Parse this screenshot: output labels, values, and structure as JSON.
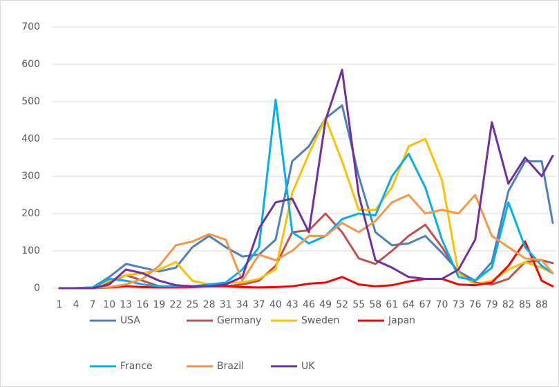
{
  "chart_data": {
    "type": "line",
    "x": [
      1,
      4,
      7,
      10,
      13,
      16,
      19,
      22,
      25,
      28,
      31,
      34,
      37,
      40,
      43,
      46,
      49,
      52,
      55,
      58,
      61,
      64,
      67,
      70,
      73,
      76,
      79,
      82,
      85,
      88,
      90
    ],
    "xlim": [
      1,
      90
    ],
    "xticks": [
      1,
      4,
      7,
      10,
      13,
      16,
      19,
      22,
      25,
      28,
      31,
      34,
      37,
      40,
      43,
      46,
      49,
      52,
      55,
      58,
      61,
      64,
      67,
      70,
      73,
      76,
      79,
      82,
      85,
      88
    ],
    "ylim": [
      0,
      700
    ],
    "yticks": [
      0,
      100,
      200,
      300,
      400,
      500,
      600,
      700
    ],
    "grid": true,
    "legend": "bottom",
    "series": [
      {
        "name": "USA",
        "color": "#4f7fbd",
        "values": [
          0,
          0,
          2,
          30,
          65,
          55,
          45,
          55,
          110,
          140,
          110,
          85,
          90,
          130,
          340,
          380,
          455,
          490,
          300,
          150,
          115,
          120,
          140,
          95,
          45,
          20,
          70,
          260,
          340,
          340,
          175
        ]
      },
      {
        "name": "Germany",
        "color": "#c0504d",
        "values": [
          0,
          0,
          0,
          15,
          35,
          20,
          5,
          3,
          5,
          5,
          5,
          10,
          20,
          60,
          150,
          155,
          200,
          150,
          80,
          65,
          100,
          140,
          170,
          110,
          40,
          15,
          10,
          25,
          70,
          75,
          67
        ]
      },
      {
        "name": "Sweden",
        "color": "#ffc000",
        "values": [
          0,
          0,
          0,
          20,
          35,
          40,
          50,
          70,
          20,
          10,
          15,
          15,
          25,
          50,
          255,
          360,
          455,
          340,
          210,
          210,
          270,
          380,
          400,
          290,
          40,
          10,
          20,
          50,
          70,
          55,
          40
        ]
      },
      {
        "name": "Japan",
        "color": "#ff0000",
        "values": [
          0,
          0,
          0,
          2,
          5,
          3,
          2,
          2,
          3,
          5,
          5,
          3,
          2,
          3,
          5,
          12,
          15,
          30,
          10,
          5,
          8,
          18,
          25,
          25,
          10,
          8,
          15,
          60,
          125,
          20,
          5
        ]
      },
      {
        "name": "France",
        "color": "#00b0f0",
        "values": [
          0,
          0,
          2,
          25,
          20,
          10,
          5,
          5,
          5,
          10,
          15,
          50,
          110,
          505,
          150,
          120,
          140,
          185,
          200,
          195,
          300,
          360,
          270,
          130,
          30,
          20,
          55,
          230,
          110,
          60,
          40
        ]
      },
      {
        "name": "Brazil",
        "color": "#f79646",
        "values": [
          0,
          0,
          1,
          3,
          10,
          25,
          60,
          115,
          125,
          145,
          130,
          20,
          90,
          75,
          100,
          140,
          140,
          175,
          150,
          180,
          230,
          250,
          200,
          210,
          200,
          250,
          140,
          110,
          80,
          75,
          40
        ]
      },
      {
        "name": "UK",
        "color": "#7030a0",
        "values": [
          0,
          0,
          0,
          10,
          50,
          40,
          20,
          8,
          5,
          5,
          10,
          30,
          160,
          230,
          240,
          150,
          450,
          585,
          250,
          75,
          55,
          30,
          25,
          25,
          50,
          130,
          445,
          280,
          350,
          300,
          355
        ]
      }
    ]
  }
}
